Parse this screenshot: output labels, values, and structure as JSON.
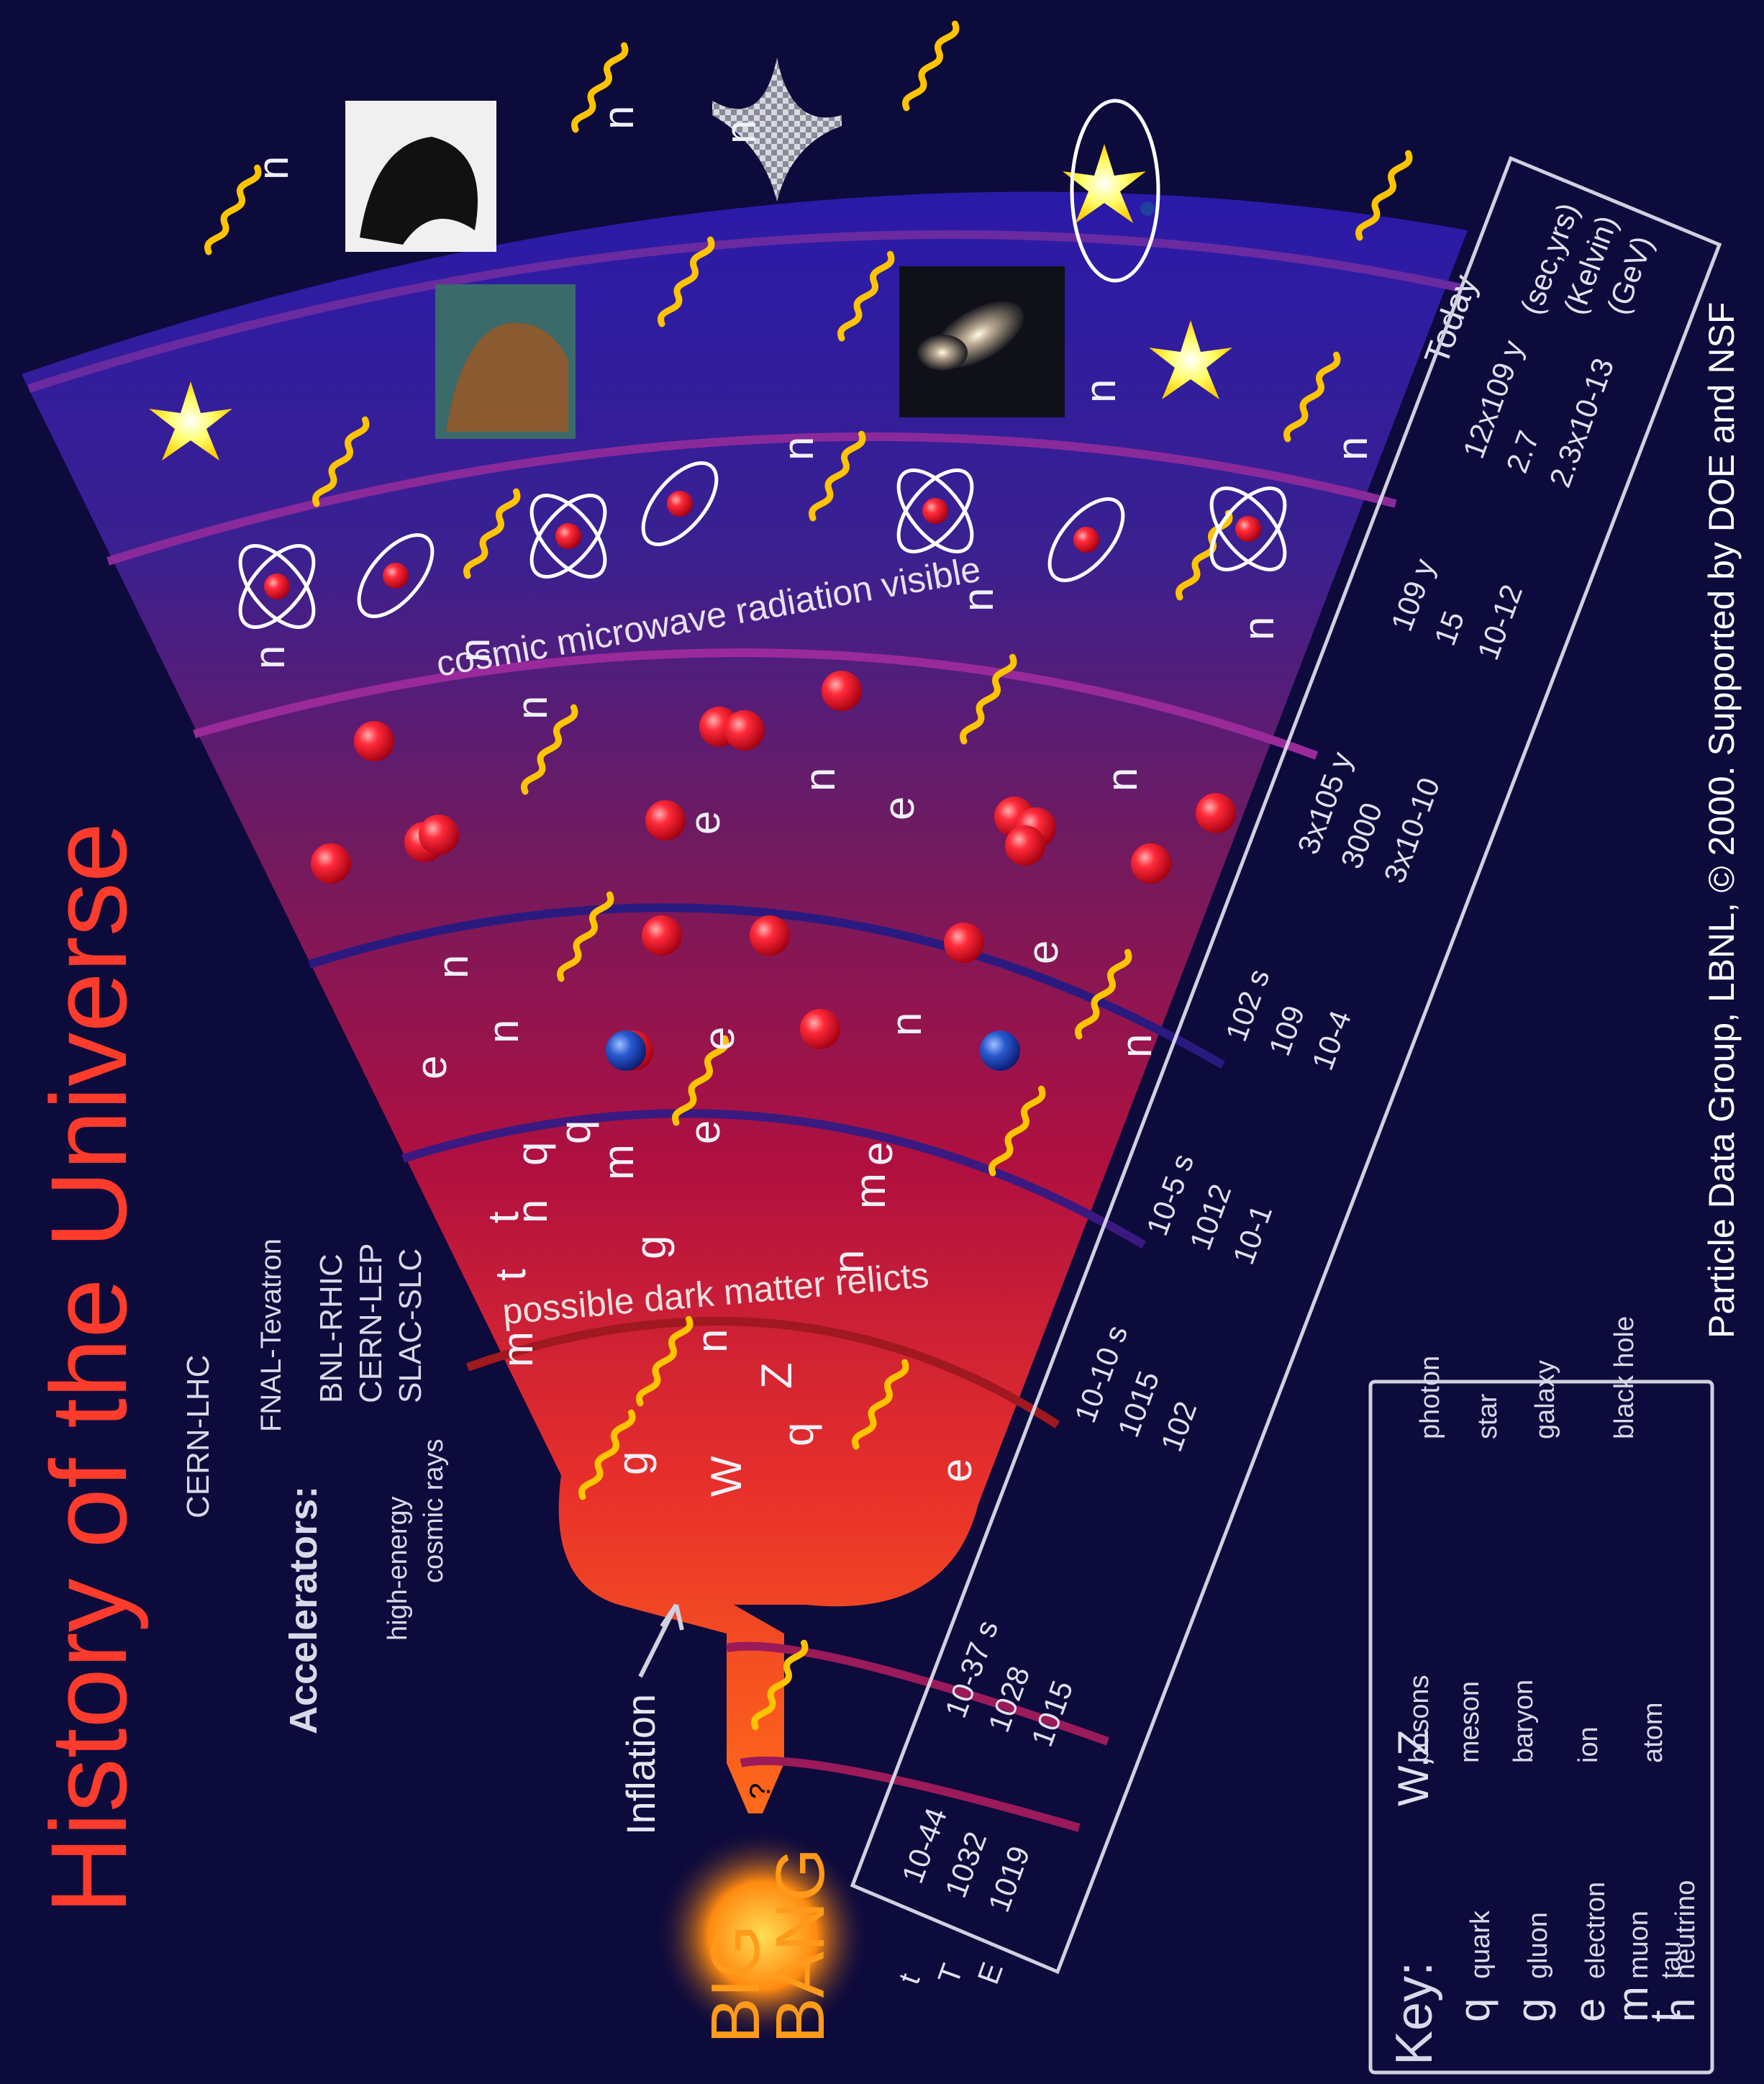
{
  "title": "History of the Universe",
  "big_bang": {
    "line1": "BIG",
    "line2": "BANG"
  },
  "inflation": "Inflation",
  "question_mark": "?",
  "bands": {
    "cmb_label": "cosmic microwave radiation visible",
    "dark_matter_label": "possible dark matter relicts",
    "today": "Today"
  },
  "accelerators": {
    "heading": "Accelerators:",
    "items": [
      "CERN-LHC",
      "FNAL-Tevatron",
      "BNL-RHIC",
      "CERN-LEP",
      "SLAC-SLC",
      "high-energy",
      "cosmic rays"
    ]
  },
  "scale": {
    "row_labels": [
      "t",
      "T",
      "E"
    ],
    "units": [
      "(sec,yrs)",
      "(Kelvin)",
      "(GeV)"
    ],
    "milestones": [
      {
        "t": "10-44",
        "T": "1032",
        "E": "1019"
      },
      {
        "t": "10-37 s",
        "T": "1028",
        "E": "1015"
      },
      {
        "t": "10-10 s",
        "T": "1015",
        "E": "102"
      },
      {
        "t": "10-5 s",
        "T": "1012",
        "E": "10-1"
      },
      {
        "t": "102 s",
        "T": "109",
        "E": "10-4"
      },
      {
        "t": "3x105 y",
        "T": "3000",
        "E": "3x10-10"
      },
      {
        "t": "109 y",
        "T": "15",
        "E": "10-12"
      },
      {
        "t": "12x109 y",
        "T": "2.7",
        "E": "2.3x10-13"
      }
    ]
  },
  "credits": "Particle Data Group, LBNL, © 2000.    Supported by DOE and NSF",
  "key": {
    "heading": "Key:",
    "entries": [
      {
        "sym": "q",
        "label": "quark"
      },
      {
        "sym": "g",
        "label": "gluon"
      },
      {
        "sym": "e",
        "label": "electron"
      },
      {
        "sym": "m",
        "label": "muon"
      },
      {
        "sym": "t",
        "label": "tau"
      },
      {
        "sym": "n",
        "label": "neutrino"
      },
      {
        "sym": "W,Z",
        "label": "bosons"
      },
      {
        "sym": "",
        "label": "meson"
      },
      {
        "sym": "",
        "label": "baryon"
      },
      {
        "sym": "",
        "label": "ion"
      },
      {
        "sym": "",
        "label": "atom"
      },
      {
        "sym": "",
        "label": "photon"
      },
      {
        "sym": "",
        "label": "star"
      },
      {
        "sym": "",
        "label": "galaxy"
      },
      {
        "sym": "",
        "label": "black hole"
      }
    ]
  },
  "particles": {
    "quark_band": [
      "t",
      "n",
      "m",
      "q",
      "g",
      "e",
      "q",
      "m",
      "n",
      "t",
      "e",
      "Z",
      "W",
      "q",
      "g",
      "m",
      "n",
      "e"
    ],
    "hadron_band": [
      "e",
      "n",
      "e",
      "n",
      "e",
      "n",
      "n"
    ],
    "nucleus_band": [
      "e",
      "n",
      "n",
      "e",
      "n"
    ],
    "atom_band": [
      "n",
      "n",
      "n",
      "n",
      "n",
      "n"
    ],
    "meson_q": "qq",
    "baryon_q": "qqq"
  },
  "colors": {
    "background": "#0d0a3c",
    "title": "#ff3b2b",
    "photon": "#ffc400",
    "particle_red": "#ff2030",
    "meson_blue": "#2050c0"
  }
}
